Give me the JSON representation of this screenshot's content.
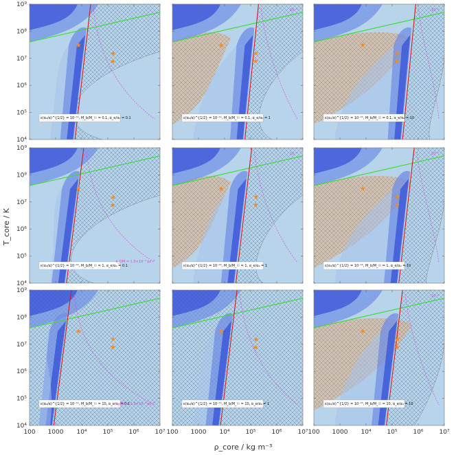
{
  "chart_data": {
    "type": "contour",
    "layout": "3x3 grid of panels",
    "xlabel": "ρ_core / kg m⁻³",
    "ylabel": "T_core / K",
    "x_scale": "log",
    "y_scale": "log",
    "xlim": [
      100,
      10000000
    ],
    "ylim": [
      10000,
      1000000000
    ],
    "x_ticks": [
      {
        "value": 100,
        "label": "100"
      },
      {
        "value": 1000,
        "label": "1000"
      },
      {
        "value": 10000,
        "label": "10⁴"
      },
      {
        "value": 100000,
        "label": "10⁵"
      },
      {
        "value": 1000000,
        "label": "10⁶"
      },
      {
        "value": 10000000,
        "label": "10⁷"
      }
    ],
    "y_ticks": [
      {
        "value": 10000,
        "label": "10⁴"
      },
      {
        "value": 100000,
        "label": "10⁵"
      },
      {
        "value": 1000000,
        "label": "10⁶"
      },
      {
        "value": 10000000,
        "label": "10⁷"
      },
      {
        "value": 100000000,
        "label": "10⁸"
      },
      {
        "value": 1000000000,
        "label": "10⁹"
      }
    ],
    "colors": {
      "background_fill": "#b8d4ea",
      "contour_dark": "#3a55d8",
      "contour_mid": "#6f8ee6",
      "contour_light": "#a6c3ec",
      "hatch_orange": "#e7b17d",
      "green_line": "#3ddc3d",
      "red_line": "#d41a1a",
      "star": "#f08a2a",
      "magenta": "#e040e0"
    },
    "stars": [
      {
        "x": 7500,
        "y": 30000000
      },
      {
        "x": 160000,
        "y": 15000000
      },
      {
        "x": 155000,
        "y": 7500000
      }
    ],
    "green_line": {
      "x": [
        100,
        10000000
      ],
      "y": [
        40000000,
        500000000
      ]
    },
    "panels": [
      {
        "row": 0,
        "col": 0,
        "label": "ε(α₀/α)^{1/2} = 10⁻¹¹, M_b/M_☉ = 0.1, α_e/α₀ = 0.1",
        "red_line_x": [
          5500,
          22000
        ],
        "hatch": "low",
        "orange": false,
        "magenta_label": ""
      },
      {
        "row": 0,
        "col": 1,
        "label": "ε(α₀/α)^{1/2} = 10⁻¹¹, M_b/M_☉ = 0.1, α_e/α₀ = 1",
        "red_line_x": [
          60000,
          200000
        ],
        "hatch": "medium",
        "orange": true,
        "magenta_label": "10⁻⁴"
      },
      {
        "row": 0,
        "col": 2,
        "label": "ε(α₀/α)^{1/2} = 10⁻¹¹, M_b/M_☉ = 0.1, α_e/α₀ = 10",
        "red_line_x": [
          250000,
          800000
        ],
        "hatch": "high",
        "orange": true,
        "magenta_label": "10⁻²"
      },
      {
        "row": 1,
        "col": 0,
        "label": "ε(α₀/α)^{1/2} = 10⁻¹¹, M_b/M_☉ = 1, α_e/α₀ = 0.1",
        "red_line_x": [
          2600,
          12000
        ],
        "hatch": "low",
        "orange": false,
        "magenta_label": "n_DM = 1.0×10⁻⁴ pc⁻³"
      },
      {
        "row": 1,
        "col": 1,
        "label": "ε(α₀/α)^{1/2} = 10⁻¹¹, M_b/M_☉ = 1, α_e/α₀ = 1",
        "red_line_x": [
          27000,
          110000
        ],
        "hatch": "medium",
        "orange": true,
        "magenta_label": "10⁻⁴"
      },
      {
        "row": 1,
        "col": 2,
        "label": "ε(α₀/α)^{1/2} = 10⁻¹¹, M_b/M_☉ = 1, α_e/α₀ = 10",
        "red_line_x": [
          180000,
          700000
        ],
        "hatch": "high",
        "orange": true,
        "magenta_label": "10⁻²"
      },
      {
        "row": 2,
        "col": 0,
        "label": "ε(α₀/α)^{1/2} = 10⁻¹¹, M_b/M_☉ = 10, α_e/α₀ = 0.1",
        "red_line_x": [
          850,
          4000
        ],
        "hatch": "full",
        "orange": false,
        "magenta_label": "n_DM = 1.0×10⁻⁴ pc⁻³"
      },
      {
        "row": 2,
        "col": 1,
        "label": "ε(α₀/α)^{1/2} = 10⁻¹¹, M_b/M_☉ = 10, α_e/α₀ = 1",
        "red_line_x": [
          7000,
          30000
        ],
        "hatch": "full",
        "orange": false,
        "magenta_label": ""
      },
      {
        "row": 2,
        "col": 2,
        "label": "ε(α₀/α)^{1/2} = 10⁻¹¹, M_b/M_☉ = 10, α_e/α₀ = 10",
        "red_line_x": [
          60000,
          250000
        ],
        "hatch": "high",
        "orange": true,
        "magenta_label": "10⁻²"
      }
    ]
  }
}
